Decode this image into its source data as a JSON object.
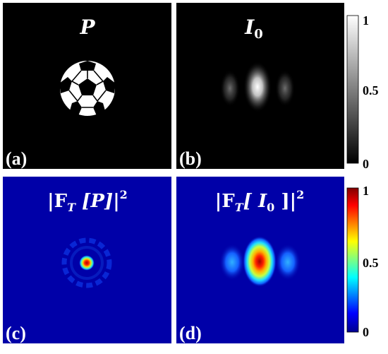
{
  "figure": {
    "panels": [
      {
        "id": "a",
        "label": "(a)",
        "title": "P",
        "kind": "object"
      },
      {
        "id": "b",
        "label": "(b)",
        "title": "I",
        "title_sub": "0",
        "kind": "image"
      },
      {
        "id": "c",
        "label": "(c)",
        "title": "|F",
        "title_sub": "T",
        "title_rest": " [P]|",
        "title_sup": "2",
        "kind": "spectrum"
      },
      {
        "id": "d",
        "label": "(d)",
        "title": "|F",
        "title_sub": "T",
        "title_rest": "[ I",
        "title_sub2": "0",
        "title_rest2": " ]|",
        "title_sup": "2",
        "kind": "spectrum"
      }
    ],
    "colorbars": [
      {
        "id": "gray",
        "colormap": "gray",
        "ticks": [
          "1",
          "0.5",
          "0"
        ]
      },
      {
        "id": "jet",
        "colormap": "jet",
        "ticks": [
          "1",
          "0.5",
          "0"
        ]
      }
    ],
    "colors": {
      "panel_background_gray": "#000000",
      "panel_background_jet": "#0000a8",
      "ball_white": "#ffffff"
    }
  }
}
